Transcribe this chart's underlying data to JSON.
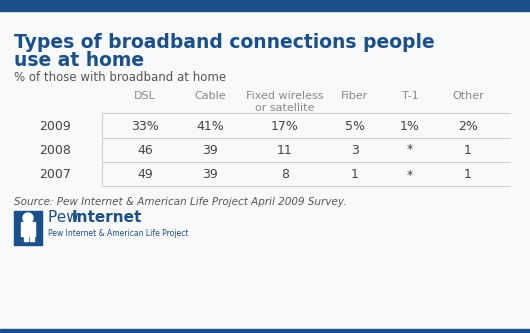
{
  "title_line1": "Types of broadband connections people",
  "title_line2": "use at home",
  "subtitle": "% of those with broadband at home",
  "col_headers": [
    "DSL",
    "Cable",
    "Fixed wireless\nor satellite",
    "Fiber",
    "T-1",
    "Other"
  ],
  "row_labels": [
    "2009",
    "2008",
    "2007"
  ],
  "table_data": [
    [
      "33%",
      "41%",
      "17%",
      "5%",
      "1%",
      "2%"
    ],
    [
      "46",
      "39",
      "11",
      "3",
      "*",
      "1"
    ],
    [
      "49",
      "39",
      "8",
      "1",
      "*",
      "1"
    ]
  ],
  "source_text": "Source: Pew Internet & American Life Project April 2009 Survey.",
  "title_color": "#1b4f8a",
  "subtitle_color": "#555555",
  "header_color": "#888888",
  "data_color": "#444444",
  "source_color": "#555555",
  "bg_color": "#f8f9fa",
  "border_color": "#cccccc",
  "top_bar_color": "#1b4f8a",
  "logo_text_pew": "Pew ",
  "logo_text_internet": "Internet",
  "logo_subtext": "Pew Internet & American Life Project",
  "logo_color": "#1b4f8a",
  "title_fontsize": 13.5,
  "subtitle_fontsize": 8.5,
  "header_fontsize": 8,
  "data_fontsize": 9,
  "source_fontsize": 7.5
}
